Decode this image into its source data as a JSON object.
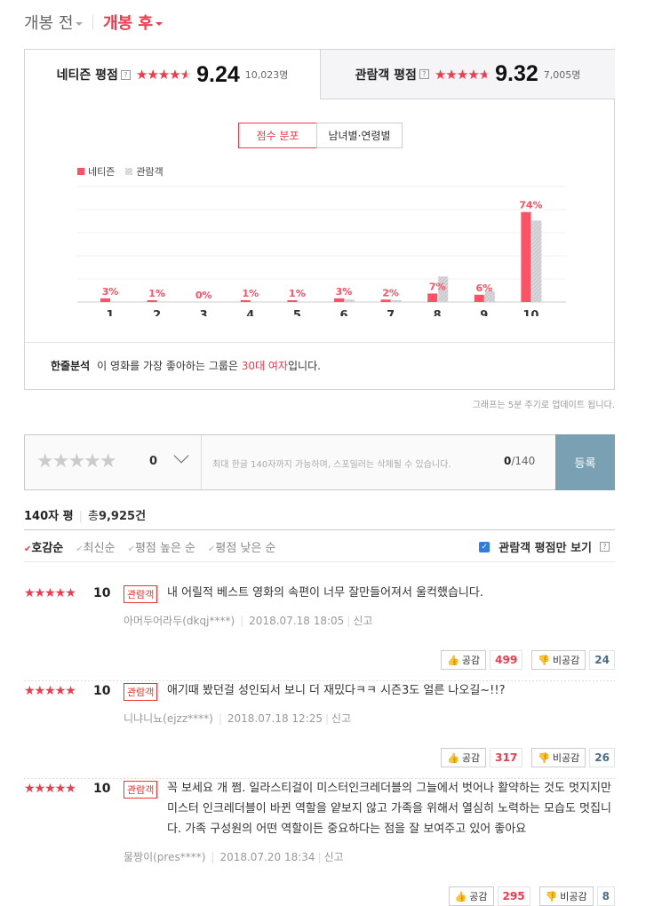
{
  "top_tabs": [
    {
      "label": "개봉 전",
      "active": false
    },
    {
      "label": "개봉 후",
      "active": true
    }
  ],
  "score_tabs": [
    {
      "label": "네티즌 평점",
      "help": "?",
      "rating": 9.24,
      "score": "9.24",
      "count": "10,023명"
    },
    {
      "label": "관람객 평점",
      "help": "?",
      "rating": 9.32,
      "score": "9.32",
      "count": "7,005명"
    }
  ],
  "chart_buttons": [
    "점수 분포",
    "남녀별·연령별"
  ],
  "chart_data": {
    "type": "bar",
    "categories": [
      "1",
      "2",
      "3",
      "4",
      "5",
      "6",
      "7",
      "8",
      "9",
      "10"
    ],
    "series": [
      {
        "name": "네티즌",
        "color": "#ff5166",
        "values": [
          3,
          1,
          0,
          1,
          1,
          3,
          2,
          7,
          6,
          74
        ],
        "labels": [
          "3%",
          "1%",
          "0%",
          "1%",
          "1%",
          "3%",
          "2%",
          "7%",
          "6%",
          "74%"
        ]
      },
      {
        "name": "관람객",
        "color": "#d4d4d8",
        "pattern": "hatched",
        "values": [
          0,
          0,
          0,
          0,
          0,
          2,
          1,
          21,
          9,
          67
        ]
      }
    ],
    "ylim": [
      0,
      95
    ],
    "grid": true,
    "legend": "top-left"
  },
  "analysis": {
    "label": "한줄분석",
    "prefix": "이 영화를 가장 좋아하는 그룹은 ",
    "highlight": "30대 여자",
    "suffix": "입니다."
  },
  "update_note": "그래프는 5분 주기로 업데이트 됩니다.",
  "input": {
    "stars": "★★★★★",
    "score": "0",
    "placeholder": "최대 한글 140자까지 가능하며, 스포일러는 삭제될 수 있습니다.",
    "count": "0",
    "max": "/140",
    "submit": "등록"
  },
  "list_header": {
    "title": "140자 평",
    "total_prefix": "총",
    "total": "9,925",
    "total_suffix": "건"
  },
  "sort": {
    "options": [
      "호감순",
      "최신순",
      "평점 높은 순",
      "평점 낮은 순"
    ],
    "active": 0,
    "filter_label": "관람객 평점만 보기",
    "filter_checked": true,
    "help": "?"
  },
  "reviews": [
    {
      "stars": "★★★★★",
      "score": "10",
      "badge": "관람객",
      "text": "내 어릴적 베스트 영화의 속편이 너무 잘만들어져서 울컥했습니다.",
      "user": "아머두어라두(dkqj****)",
      "date": "2018.07.18 18:05",
      "report": "신고",
      "like_label": "공감",
      "likes": "499",
      "dislike_label": "비공감",
      "dislikes": "24"
    },
    {
      "stars": "★★★★★",
      "score": "10",
      "badge": "관람객",
      "text": "애기때 봤던걸 성인되서 보니 더 재밌다ㅋㅋ 시즌3도 얼른 나오길~!!?",
      "user": "니냐니뇨(ejzz****)",
      "date": "2018.07.18 12:25",
      "report": "신고",
      "like_label": "공감",
      "likes": "317",
      "dislike_label": "비공감",
      "dislikes": "26"
    },
    {
      "stars": "★★★★★",
      "score": "10",
      "badge": "관람객",
      "text": "꼭 보세요 개 쩜. 일라스티걸이 미스터인크레더블의 그늘에서 벗어나 활약하는 것도 멋지지만 미스터 인크레더블이 바뀐 역할을 얕보지 않고 가족을 위해서 열심히 노력하는 모습도 멋집니다. 가족 구성원의 어떤 역할이든 중요하다는 점을 잘 보여주고 있어 좋아요",
      "user": "물짱이(pres****)",
      "date": "2018.07.20 18:34",
      "report": "신고",
      "like_label": "공감",
      "likes": "295",
      "dislike_label": "비공감",
      "dislikes": "8"
    }
  ],
  "colors": {
    "accent": "#f23a4c",
    "submit": "#7aa0b4",
    "dislike_num": "#4a6b88"
  }
}
